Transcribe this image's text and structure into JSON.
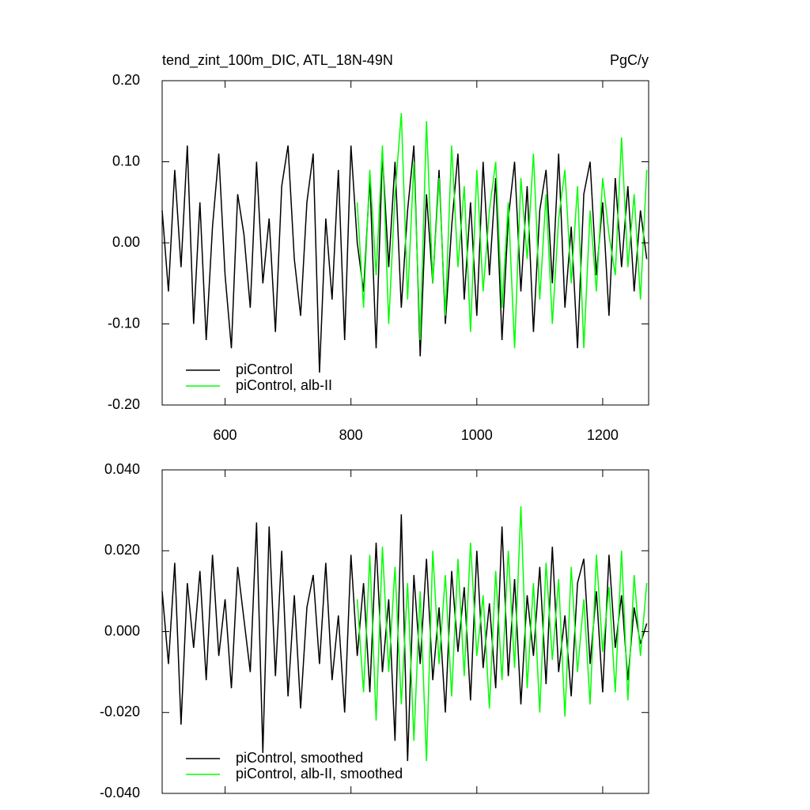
{
  "chart_data": [
    {
      "type": "line",
      "title": "tend_zint_100m_DIC, ATL_18N-49N",
      "units": "PgC/y",
      "x": [
        500,
        510,
        520,
        530,
        540,
        550,
        560,
        570,
        580,
        590,
        600,
        610,
        620,
        630,
        640,
        650,
        660,
        670,
        680,
        690,
        700,
        710,
        720,
        730,
        740,
        750,
        760,
        770,
        780,
        790,
        800,
        810,
        820,
        830,
        840,
        850,
        860,
        870,
        880,
        890,
        900,
        910,
        920,
        930,
        940,
        950,
        960,
        970,
        980,
        990,
        1000,
        1010,
        1020,
        1030,
        1040,
        1050,
        1060,
        1070,
        1080,
        1090,
        1100,
        1110,
        1120,
        1130,
        1140,
        1150,
        1160,
        1170,
        1180,
        1190,
        1200,
        1210,
        1220,
        1230,
        1240,
        1250,
        1260,
        1270
      ],
      "series": [
        {
          "name": "piControl",
          "color": "#000000",
          "values": [
            0.04,
            -0.06,
            0.09,
            -0.03,
            0.12,
            -0.1,
            0.05,
            -0.12,
            0.02,
            0.11,
            -0.04,
            -0.13,
            0.06,
            0.01,
            -0.08,
            0.1,
            -0.05,
            0.03,
            -0.11,
            0.07,
            0.12,
            -0.02,
            -0.09,
            0.05,
            0.11,
            -0.16,
            0.03,
            -0.07,
            0.09,
            -0.12,
            0.12,
            0.0,
            -0.06,
            0.08,
            -0.13,
            0.11,
            -0.03,
            0.1,
            -0.08,
            0.04,
            0.12,
            -0.14,
            0.06,
            -0.05,
            0.09,
            -0.1,
            0.02,
            0.11,
            -0.07,
            0.05,
            -0.09,
            0.1,
            -0.04,
            0.08,
            -0.12,
            0.03,
            0.1,
            -0.06,
            0.07,
            -0.11,
            0.04,
            0.09,
            -0.05,
            0.11,
            -0.08,
            0.02,
            -0.13,
            0.06,
            0.1,
            -0.04,
            0.05,
            -0.09,
            0.08,
            -0.03,
            0.07,
            -0.06,
            0.04,
            -0.02
          ]
        },
        {
          "name": "piControl, alb-II",
          "color": "#00ff00",
          "values": [
            null,
            null,
            null,
            null,
            null,
            null,
            null,
            null,
            null,
            null,
            null,
            null,
            null,
            null,
            null,
            null,
            null,
            null,
            null,
            null,
            null,
            null,
            null,
            null,
            null,
            null,
            null,
            null,
            null,
            null,
            null,
            0.05,
            -0.08,
            0.09,
            -0.04,
            0.12,
            -0.1,
            0.06,
            0.16,
            -0.07,
            0.1,
            -0.12,
            0.15,
            -0.05,
            0.08,
            -0.09,
            0.12,
            -0.03,
            0.07,
            -0.11,
            0.09,
            -0.06,
            0.04,
            0.1,
            -0.08,
            0.05,
            -0.13,
            0.08,
            -0.02,
            0.11,
            -0.07,
            0.06,
            -0.1,
            0.03,
            0.09,
            -0.05,
            0.07,
            -0.13,
            0.04,
            -0.06,
            0.08,
            0.01,
            -0.04,
            0.13,
            -0.03,
            0.06,
            -0.07,
            0.09
          ]
        }
      ],
      "xlim": [
        500,
        1273
      ],
      "xticks": [
        600,
        800,
        1000,
        1200
      ],
      "show_xtick_labels": true,
      "ylim": [
        -0.2,
        0.2
      ],
      "yticks": [
        {
          "value": -0.2,
          "label": "-0.20"
        },
        {
          "value": -0.1,
          "label": "-0.10"
        },
        {
          "value": 0,
          "label": "0.00"
        },
        {
          "value": 0.1,
          "label": "0.10"
        },
        {
          "value": 0.2,
          "label": "0.20"
        }
      ],
      "legend": "lower left"
    },
    {
      "type": "line",
      "x": [
        500,
        510,
        520,
        530,
        540,
        550,
        560,
        570,
        580,
        590,
        600,
        610,
        620,
        630,
        640,
        650,
        660,
        670,
        680,
        690,
        700,
        710,
        720,
        730,
        740,
        750,
        760,
        770,
        780,
        790,
        800,
        810,
        820,
        830,
        840,
        850,
        860,
        870,
        880,
        890,
        900,
        910,
        920,
        930,
        940,
        950,
        960,
        970,
        980,
        990,
        1000,
        1010,
        1020,
        1030,
        1040,
        1050,
        1060,
        1070,
        1080,
        1090,
        1100,
        1110,
        1120,
        1130,
        1140,
        1150,
        1160,
        1170,
        1180,
        1190,
        1200,
        1210,
        1220,
        1230,
        1240,
        1250,
        1260,
        1270
      ],
      "series": [
        {
          "name": "piControl, smoothed",
          "color": "#000000",
          "values": [
            0.01,
            -0.008,
            0.017,
            -0.023,
            0.012,
            -0.004,
            0.015,
            -0.012,
            0.019,
            -0.006,
            0.008,
            -0.014,
            0.016,
            0.003,
            -0.01,
            0.027,
            -0.03,
            0.026,
            -0.011,
            0.02,
            -0.016,
            0.009,
            -0.019,
            0.006,
            0.014,
            -0.008,
            0.017,
            -0.012,
            0.004,
            -0.02,
            0.019,
            -0.006,
            0.012,
            -0.015,
            0.022,
            -0.01,
            0.008,
            -0.027,
            0.029,
            -0.032,
            0.014,
            -0.008,
            0.018,
            -0.012,
            0.006,
            -0.02,
            0.015,
            -0.005,
            0.011,
            -0.017,
            0.02,
            -0.009,
            0.007,
            -0.014,
            0.026,
            -0.011,
            0.013,
            -0.018,
            0.009,
            -0.006,
            0.016,
            -0.013,
            0.021,
            -0.01,
            0.004,
            -0.016,
            0.012,
            0.018,
            -0.008,
            0.01,
            -0.015,
            0.019,
            -0.004,
            0.009,
            -0.012,
            0.006,
            -0.003,
            0.002
          ]
        },
        {
          "name": "piControl, alb-II, smoothed",
          "color": "#00ff00",
          "values": [
            null,
            null,
            null,
            null,
            null,
            null,
            null,
            null,
            null,
            null,
            null,
            null,
            null,
            null,
            null,
            null,
            null,
            null,
            null,
            null,
            null,
            null,
            null,
            null,
            null,
            null,
            null,
            null,
            null,
            null,
            null,
            0.008,
            -0.015,
            0.019,
            -0.022,
            0.021,
            -0.01,
            0.016,
            -0.018,
            0.012,
            -0.027,
            0.01,
            -0.032,
            0.02,
            -0.008,
            0.014,
            -0.016,
            0.018,
            -0.011,
            0.022,
            -0.006,
            0.009,
            -0.019,
            0.015,
            -0.012,
            0.02,
            -0.009,
            0.031,
            -0.014,
            0.012,
            -0.02,
            0.017,
            -0.007,
            0.013,
            -0.021,
            0.016,
            -0.01,
            0.008,
            -0.018,
            0.019,
            -0.005,
            0.011,
            -0.015,
            0.02,
            -0.017,
            0.014,
            -0.006,
            0.012
          ]
        }
      ],
      "xlim": [
        500,
        1273
      ],
      "xticks": [
        600,
        800,
        1000,
        1200
      ],
      "show_xtick_labels": false,
      "ylim": [
        -0.04,
        0.04
      ],
      "yticks": [
        {
          "value": -0.04,
          "label": "-0.040"
        },
        {
          "value": -0.02,
          "label": "-0.020"
        },
        {
          "value": 0,
          "label": "0.000"
        },
        {
          "value": 0.02,
          "label": "0.020"
        },
        {
          "value": 0.04,
          "label": "0.040"
        }
      ],
      "legend": "lower left"
    }
  ]
}
